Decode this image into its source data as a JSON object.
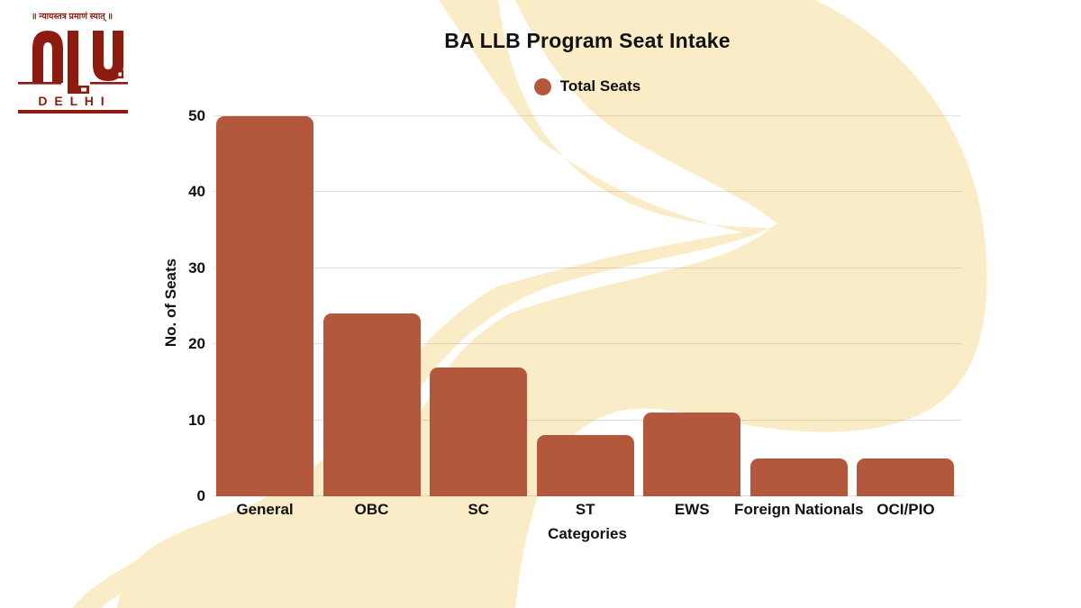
{
  "logo": {
    "motto": "॥ न्यायस्तत्र प्रमाणं स्यात् ॥",
    "monogram": "NLU",
    "city": "D E L H I",
    "color": "#8e1b10"
  },
  "chart_data": {
    "type": "bar",
    "title": "BA LLB Program Seat Intake",
    "legend": {
      "label": "Total Seats",
      "position": "top-center"
    },
    "categories": [
      "General",
      "OBC",
      "SC",
      "ST",
      "EWS",
      "Foreign Nationals",
      "OCI/PIO"
    ],
    "values": [
      50,
      24,
      17,
      8,
      11,
      5,
      5
    ],
    "xlabel": "Categories",
    "ylabel": "No. of Seats",
    "ylim": [
      0,
      50
    ],
    "yticks": [
      0,
      10,
      20,
      30,
      40,
      50
    ],
    "grid": true,
    "bar_color": "#b3573d",
    "background_accent": "#f9ecc7",
    "text_color": "#111111"
  }
}
